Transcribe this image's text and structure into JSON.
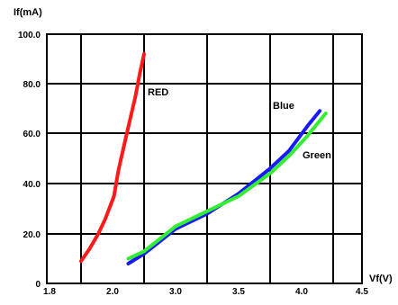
{
  "chart_data": {
    "type": "line",
    "title": "",
    "xlabel": "Vf(V)",
    "ylabel": "If(mA)",
    "xlim": [
      1.8,
      4.5
    ],
    "ylim": [
      0,
      100
    ],
    "x_ticks": [
      1.8,
      2.0,
      3.0,
      3.5,
      4.0,
      4.5
    ],
    "x_tick_labels": [
      "1.8",
      "2.0",
      "3.0",
      "3.5",
      "4.0",
      "4.5"
    ],
    "y_ticks": [
      0,
      20,
      40,
      60,
      80,
      100
    ],
    "y_tick_labels": [
      "0",
      "20.0",
      "40.0",
      "60.0",
      "80.0",
      "100.0"
    ],
    "grid": true,
    "series": [
      {
        "name": "RED",
        "color": "#ff1a1a",
        "x": [
          1.76,
          1.82,
          1.88,
          1.93,
          1.99,
          2.02,
          2.06,
          2.1,
          2.14,
          2.17,
          2.2
        ],
        "y": [
          9,
          14,
          20,
          26,
          35,
          45,
          55,
          65,
          75,
          84,
          92
        ]
      },
      {
        "name": "Blue",
        "color": "#1a1aff",
        "x": [
          2.25,
          2.5,
          2.75,
          3.0,
          3.25,
          3.5,
          3.75,
          3.9,
          4.05,
          4.15
        ],
        "y": [
          8,
          12,
          17,
          22,
          28,
          36,
          46,
          53,
          63,
          69
        ]
      },
      {
        "name": "Green",
        "color": "#33ee33",
        "x": [
          2.25,
          2.5,
          2.75,
          3.0,
          3.25,
          3.5,
          3.75,
          3.9,
          4.05,
          4.2
        ],
        "y": [
          10,
          13,
          18,
          23,
          29,
          35,
          44,
          51,
          59,
          68
        ]
      }
    ]
  }
}
